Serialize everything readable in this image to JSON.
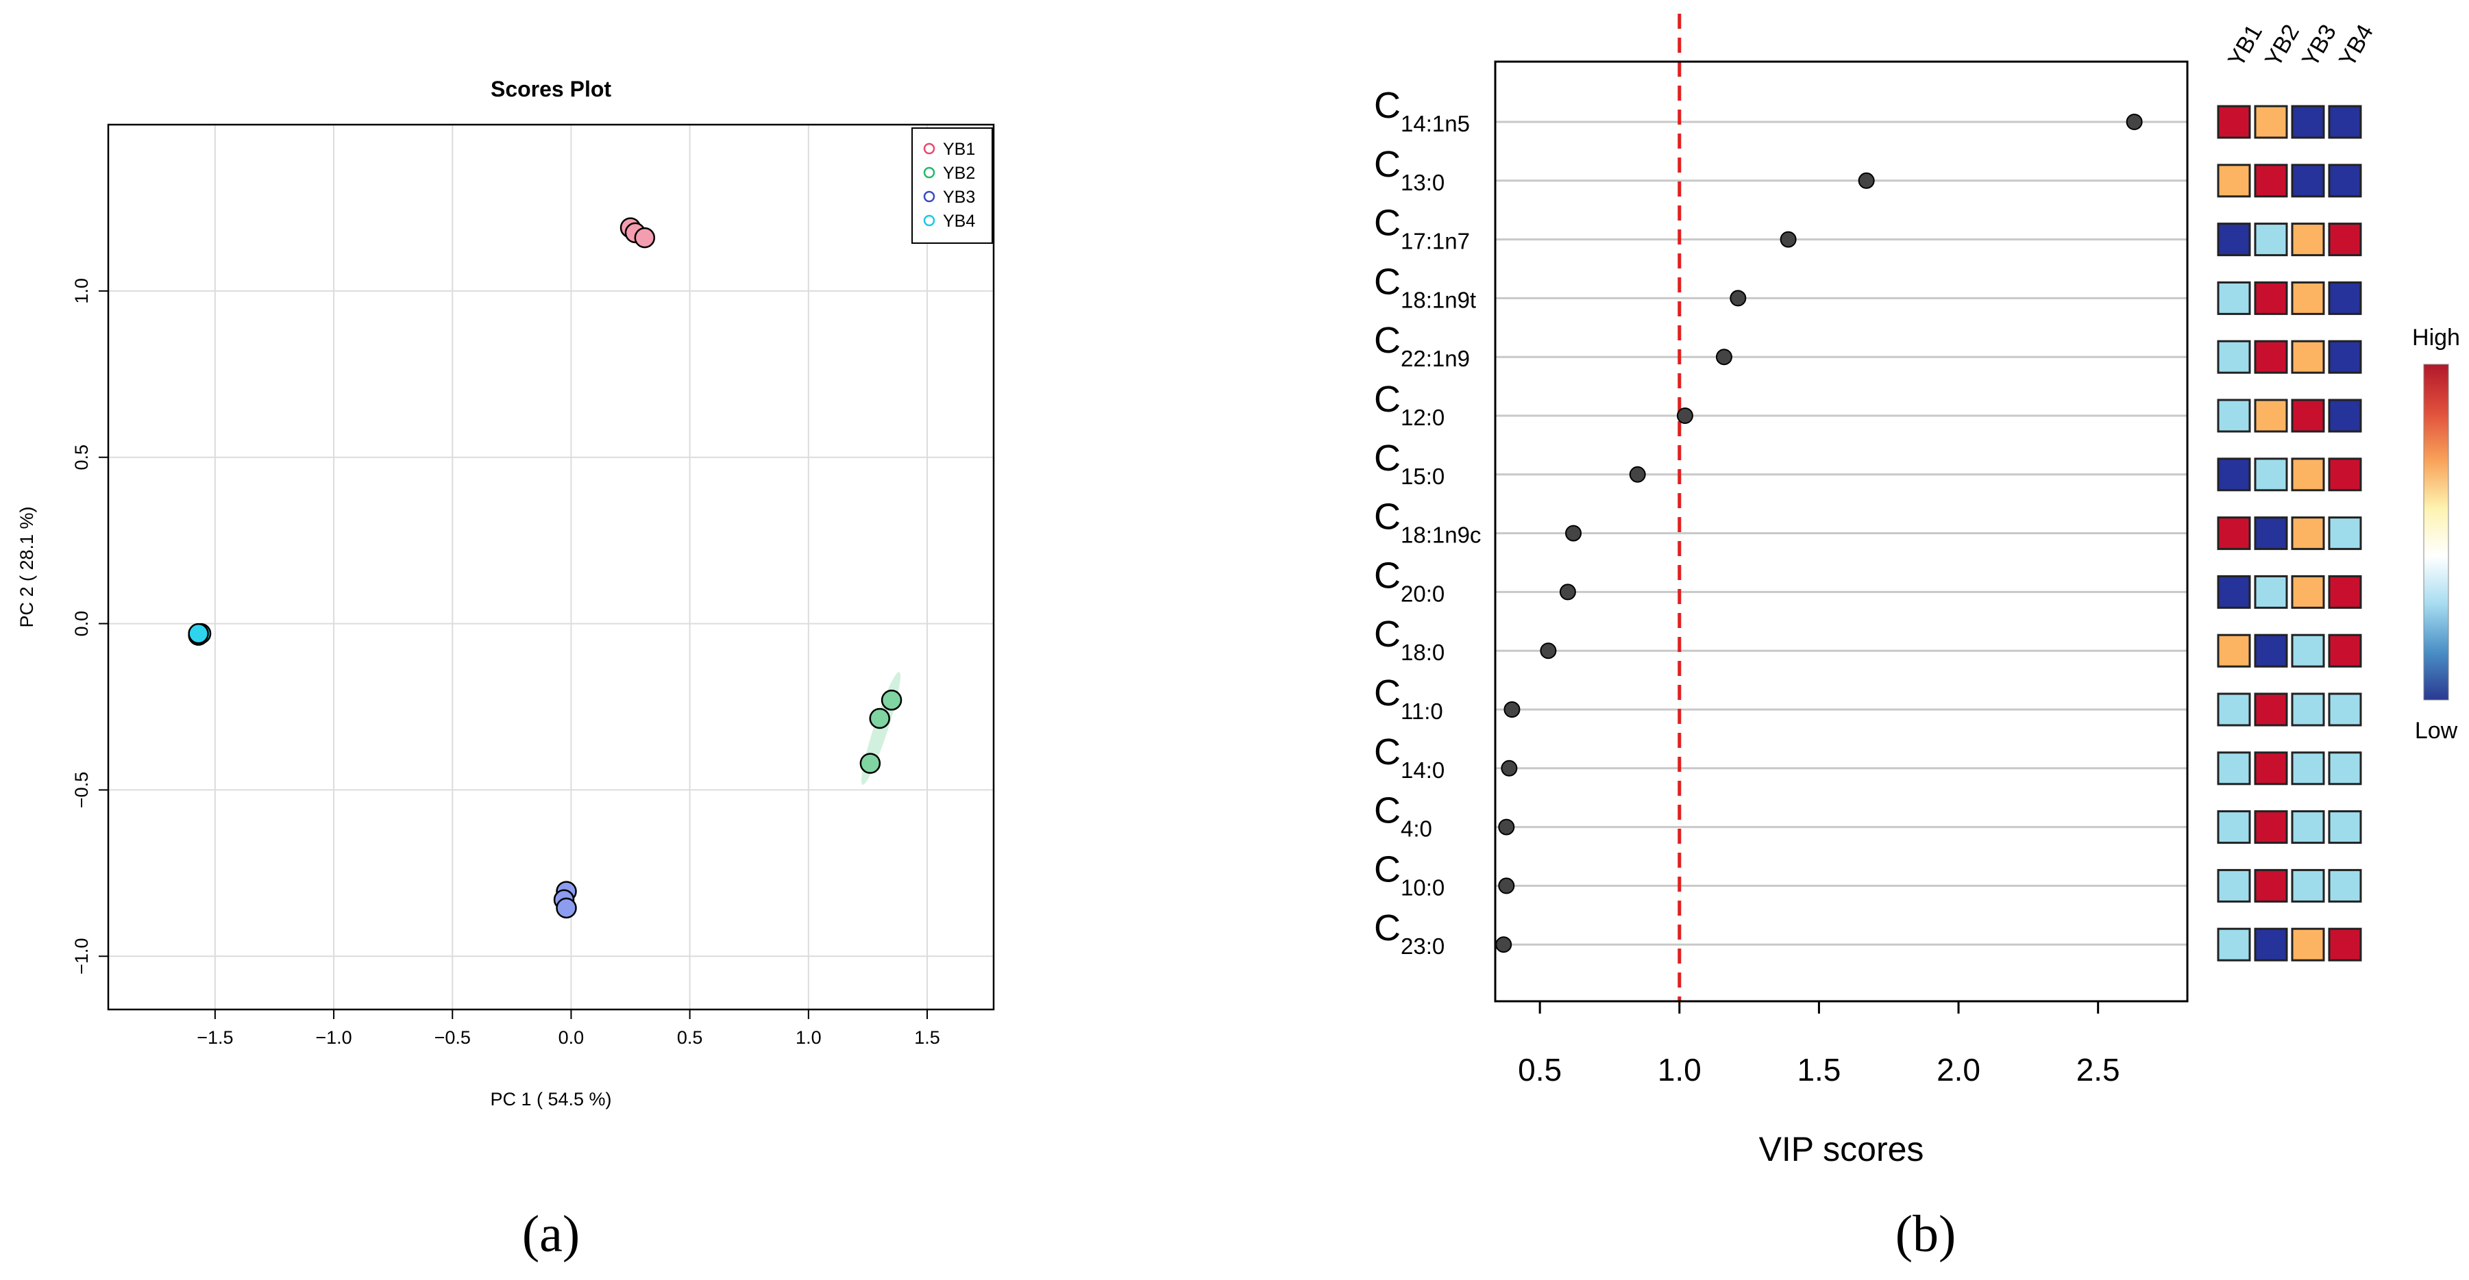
{
  "chart_data": [
    {
      "type": "scatter",
      "panel_label": "(a)",
      "title": "Scores Plot",
      "xlabel": "PC 1 ( 54.5 %)",
      "ylabel": "PC 2 ( 28.1 %)",
      "xlim": [
        -1.95,
        1.78
      ],
      "ylim": [
        -1.16,
        1.5
      ],
      "xticks": [
        -1.5,
        -1.0,
        -0.5,
        0.0,
        0.5,
        1.0,
        1.5
      ],
      "xtick_labels": [
        "−1.5",
        "−1.0",
        "−0.5",
        "0.0",
        "0.5",
        "1.0",
        "1.5"
      ],
      "yticks": [
        -1.0,
        -0.5,
        0.0,
        0.5,
        1.0
      ],
      "ytick_labels": [
        "−1.0",
        "−0.5",
        "0.0",
        "0.5",
        "1.0"
      ],
      "grid": true,
      "legend_position": "top-right",
      "series": [
        {
          "name": "YB1",
          "color": "#e8496f",
          "fill": "#f49db0",
          "points": [
            [
              0.25,
              1.19
            ],
            [
              0.27,
              1.175
            ],
            [
              0.31,
              1.16
            ]
          ],
          "ellipse": null
        },
        {
          "name": "YB2",
          "color": "#21b96a",
          "fill": "#7fd4a1",
          "points": [
            [
              1.35,
              -0.23
            ],
            [
              1.3,
              -0.285
            ],
            [
              1.26,
              -0.42
            ]
          ],
          "ellipse": {
            "cx": 1.305,
            "cy": -0.315,
            "rx": 0.25,
            "ry": 0.03,
            "angle_deg": 72
          }
        },
        {
          "name": "YB3",
          "color": "#3a4bbf",
          "fill": "#8c9df0",
          "points": [
            [
              -0.02,
              -0.805
            ],
            [
              -0.03,
              -0.83
            ],
            [
              -0.02,
              -0.855
            ]
          ],
          "ellipse": null
        },
        {
          "name": "YB4",
          "color": "#1cc8e6",
          "fill": "#2fd3ee",
          "points": [
            [
              -1.57,
              -0.035
            ],
            [
              -1.56,
              -0.03
            ],
            [
              -1.57,
              -0.03
            ]
          ],
          "ellipse": null
        }
      ]
    },
    {
      "type": "scatter",
      "panel_label": "(b)",
      "xlabel": "VIP scores",
      "xlim": [
        0.34,
        2.82
      ],
      "xticks": [
        0.5,
        1.0,
        1.5,
        2.0,
        2.5
      ],
      "xtick_labels": [
        "0.5",
        "1.0",
        "1.5",
        "2.0",
        "2.5"
      ],
      "threshold": 1.0,
      "threshold_color": "#e02020",
      "heatmap_columns": [
        "YB1",
        "YB2",
        "YB3",
        "YB4"
      ],
      "colorbar": {
        "high_label": "High",
        "low_label": "Low",
        "colors": [
          "#b2182b",
          "#e0503c",
          "#f8a25a",
          "#fdf3b0",
          "#ffffff",
          "#a7dcf0",
          "#4a8fc6",
          "#2a3990"
        ]
      },
      "palette": {
        "H": "#c8102e",
        "M": "#fdb462",
        "L": "#9edcec",
        "D": "#26339a"
      },
      "rows": [
        {
          "base": "C",
          "sub": "14:1n5",
          "vip": 2.63,
          "levels": [
            "H",
            "M",
            "D",
            "D"
          ]
        },
        {
          "base": "C",
          "sub": "13:0",
          "vip": 1.67,
          "levels": [
            "M",
            "H",
            "D",
            "D"
          ]
        },
        {
          "base": "C",
          "sub": "17:1n7",
          "vip": 1.39,
          "levels": [
            "D",
            "L",
            "M",
            "H"
          ]
        },
        {
          "base": "C",
          "sub": "18:1n9t",
          "vip": 1.21,
          "levels": [
            "L",
            "H",
            "M",
            "D"
          ]
        },
        {
          "base": "C",
          "sub": "22:1n9",
          "vip": 1.16,
          "levels": [
            "L",
            "H",
            "M",
            "D"
          ]
        },
        {
          "base": "C",
          "sub": "12:0",
          "vip": 1.02,
          "levels": [
            "L",
            "M",
            "H",
            "D"
          ]
        },
        {
          "base": "C",
          "sub": "15:0",
          "vip": 0.85,
          "levels": [
            "D",
            "L",
            "M",
            "H"
          ]
        },
        {
          "base": "C",
          "sub": "18:1n9c",
          "vip": 0.62,
          "levels": [
            "H",
            "D",
            "M",
            "L"
          ]
        },
        {
          "base": "C",
          "sub": "20:0",
          "vip": 0.6,
          "levels": [
            "D",
            "L",
            "M",
            "H"
          ]
        },
        {
          "base": "C",
          "sub": "18:0",
          "vip": 0.53,
          "levels": [
            "M",
            "D",
            "L",
            "H"
          ]
        },
        {
          "base": "C",
          "sub": "11:0",
          "vip": 0.4,
          "levels": [
            "L",
            "H",
            "L",
            "L"
          ]
        },
        {
          "base": "C",
          "sub": "14:0",
          "vip": 0.39,
          "levels": [
            "L",
            "H",
            "L",
            "L"
          ]
        },
        {
          "base": "C",
          "sub": "4:0",
          "vip": 0.38,
          "levels": [
            "L",
            "H",
            "L",
            "L"
          ]
        },
        {
          "base": "C",
          "sub": "10:0",
          "vip": 0.38,
          "levels": [
            "L",
            "H",
            "L",
            "L"
          ]
        },
        {
          "base": "C",
          "sub": "23:0",
          "vip": 0.37,
          "levels": [
            "L",
            "D",
            "M",
            "H"
          ]
        }
      ]
    }
  ]
}
